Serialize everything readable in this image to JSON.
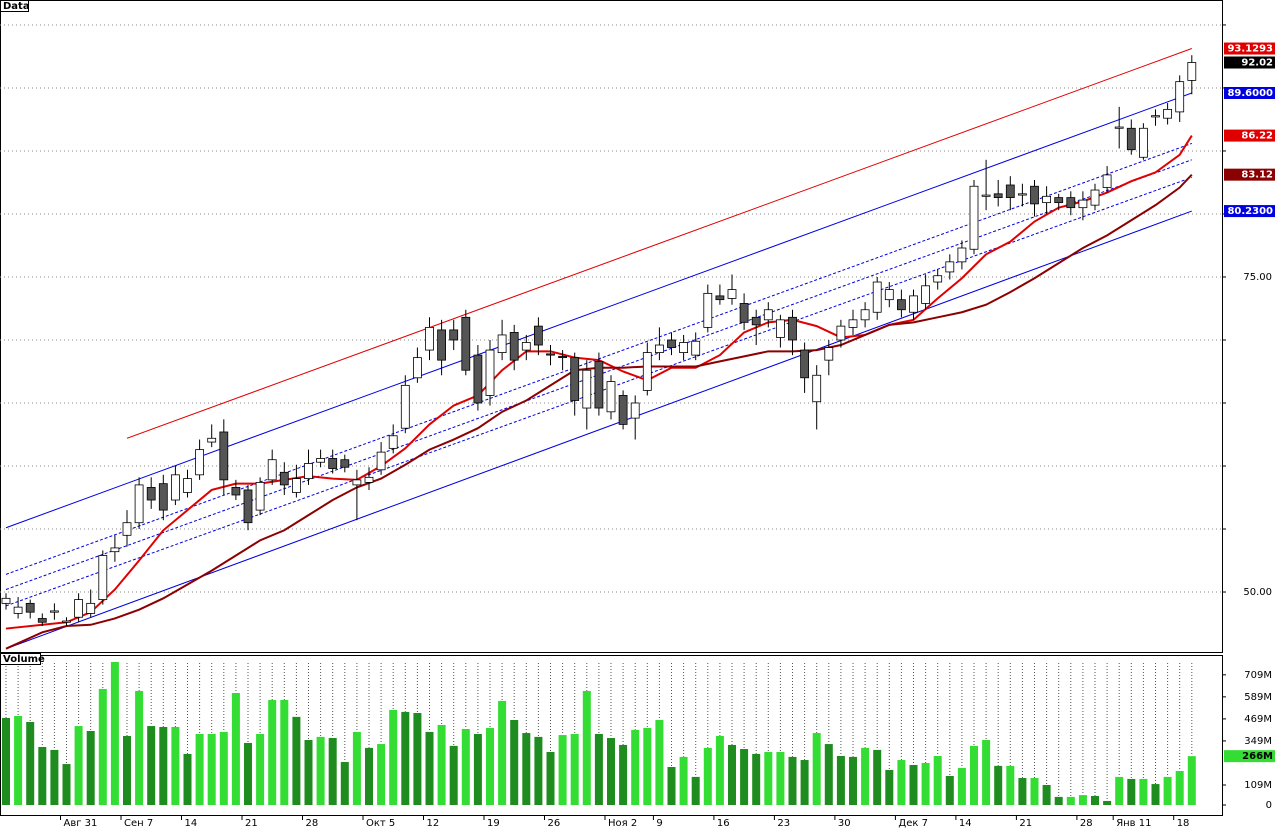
{
  "chart_data": [
    {
      "type": "candlestick",
      "title": "Data",
      "open": [
        49.1,
        48.3,
        49.1,
        47.9,
        48.4,
        47.6,
        48.0,
        48.3,
        49.4,
        53.2,
        54.5,
        55.5,
        58.3,
        58.6,
        57.3,
        57.9,
        59.3,
        61.9,
        62.7,
        58.3,
        58.1,
        56.5,
        58.9,
        59.5,
        57.9,
        59.0,
        60.3,
        60.6,
        60.5,
        58.5,
        58.7,
        59.7,
        61.4,
        63.0,
        67.0,
        69.2,
        70.8,
        70.8,
        71.8,
        68.8,
        65.6,
        69.0,
        70.6,
        69.2,
        71.1,
        68.9,
        68.7,
        68.6,
        64.6,
        68.3,
        64.3,
        65.6,
        63.8,
        66.0,
        69.0,
        70.0,
        69.0,
        68.8,
        71.0,
        73.5,
        73.3,
        72.9,
        71.8,
        71.6,
        70.2,
        71.8,
        69.2,
        65.1,
        68.4,
        70.0,
        71.0,
        71.6,
        72.2,
        73.2,
        73.2,
        72.2,
        72.9,
        74.6,
        75.4,
        76.2,
        77.2,
        81.4,
        81.6,
        82.3,
        81.5,
        82.2,
        80.9,
        81.3,
        81.3,
        80.5,
        80.7,
        82.1,
        86.8,
        86.8,
        84.5,
        87.7,
        87.6,
        88.1,
        90.6
      ],
      "high": [
        49.9,
        49.6,
        49.4,
        48.3,
        49.1,
        48.0,
        49.9,
        50.2,
        53.3,
        54.5,
        56.5,
        59.1,
        59.1,
        59.3,
        60.0,
        59.7,
        62.1,
        63.3,
        63.7,
        58.9,
        58.5,
        59.1,
        61.3,
        60.3,
        60.1,
        61.3,
        61.3,
        61.3,
        60.9,
        59.7,
        59.9,
        61.9,
        63.3,
        67.2,
        69.4,
        71.8,
        71.6,
        71.6,
        72.4,
        69.6,
        70.0,
        71.6,
        71.2,
        70.4,
        71.8,
        69.6,
        69.2,
        69.0,
        68.4,
        69.0,
        67.2,
        66.0,
        65.6,
        69.8,
        71.0,
        70.6,
        70.4,
        70.6,
        74.4,
        74.4,
        75.2,
        73.7,
        72.4,
        73.0,
        72.0,
        72.4,
        69.8,
        68.0,
        70.0,
        71.6,
        72.4,
        73.0,
        75.0,
        74.6,
        74.0,
        74.0,
        75.2,
        75.6,
        76.8,
        77.9,
        82.7,
        84.3,
        82.7,
        83.0,
        82.4,
        82.7,
        82.2,
        81.6,
        81.8,
        81.8,
        82.4,
        83.8,
        88.5,
        87.5,
        87.2,
        88.3,
        88.8,
        91.0,
        92.6
      ],
      "low": [
        48.6,
        47.9,
        47.9,
        47.3,
        47.8,
        47.3,
        47.6,
        48.0,
        49.0,
        52.4,
        53.6,
        55.0,
        56.6,
        55.7,
        56.9,
        57.5,
        58.9,
        61.5,
        57.7,
        57.3,
        54.9,
        56.1,
        58.5,
        57.7,
        57.5,
        58.5,
        59.9,
        59.4,
        59.5,
        55.7,
        58.1,
        59.3,
        61.0,
        62.6,
        66.6,
        68.4,
        67.2,
        69.2,
        67.2,
        64.4,
        64.8,
        68.4,
        67.6,
        68.4,
        68.8,
        68.0,
        67.6,
        64.0,
        62.9,
        64.0,
        63.7,
        62.9,
        62.1,
        65.6,
        68.4,
        68.8,
        68.4,
        68.4,
        70.6,
        72.8,
        72.8,
        70.8,
        69.6,
        71.0,
        69.4,
        68.8,
        65.8,
        62.9,
        67.2,
        69.4,
        70.4,
        71.0,
        71.6,
        72.6,
        71.8,
        71.6,
        72.4,
        74.0,
        74.8,
        75.6,
        76.8,
        80.3,
        80.6,
        80.3,
        80.6,
        79.8,
        80.0,
        80.3,
        79.9,
        79.5,
        80.3,
        81.7,
        85.2,
        84.7,
        84.3,
        87.0,
        87.1,
        87.3,
        89.5
      ],
      "close": [
        49.5,
        48.8,
        48.4,
        47.6,
        48.5,
        47.7,
        49.4,
        49.1,
        52.9,
        53.5,
        55.5,
        58.5,
        57.3,
        56.5,
        59.3,
        59.0,
        61.3,
        62.2,
        58.9,
        57.7,
        55.5,
        58.7,
        60.5,
        58.5,
        59.0,
        60.2,
        60.6,
        59.8,
        59.9,
        58.9,
        59.1,
        61.1,
        62.4,
        66.4,
        68.6,
        71.0,
        68.4,
        70.0,
        67.6,
        65.0,
        69.2,
        70.4,
        68.4,
        69.8,
        69.6,
        68.8,
        68.6,
        65.2,
        67.6,
        64.6,
        66.7,
        63.3,
        65.0,
        69.0,
        69.6,
        69.4,
        69.8,
        69.9,
        73.7,
        73.2,
        74.0,
        71.4,
        71.2,
        72.4,
        71.6,
        70.0,
        67.0,
        67.2,
        69.4,
        71.1,
        71.6,
        72.4,
        74.6,
        74.0,
        72.4,
        73.5,
        74.3,
        75.1,
        76.2,
        77.3,
        82.2,
        81.5,
        81.3,
        81.3,
        81.6,
        80.8,
        81.4,
        80.9,
        80.5,
        81.1,
        81.9,
        83.1,
        86.9,
        85.1,
        86.8,
        87.8,
        88.3,
        90.5,
        92.02
      ],
      "candle_colors": {
        "up": "#ffffff",
        "down": "#555555"
      },
      "last_label_box": "#000000",
      "ylim": [
        45.24,
        96.98
      ],
      "yticks": [
        {
          "value": 50,
          "label": "50.00"
        },
        {
          "value": 75,
          "label": "75.00"
        }
      ],
      "ygrid": [
        50,
        55,
        60,
        65,
        70,
        75,
        80,
        85,
        90,
        95
      ],
      "series": [
        {
          "color": "#e00000",
          "label_box": "#e00000",
          "x": [
            0,
            5,
            7,
            9,
            11,
            13,
            15,
            17,
            19,
            21,
            23,
            25,
            27,
            29,
            31,
            33,
            35,
            37,
            39,
            41,
            43,
            45,
            47,
            49,
            51,
            53,
            55,
            57,
            59,
            61,
            63,
            65,
            67,
            69,
            71,
            73,
            75,
            77,
            79,
            81,
            83,
            85,
            87,
            89,
            91,
            93,
            95,
            97,
            98
          ],
          "values": [
            47.1,
            47.6,
            48.4,
            50.2,
            52.5,
            54.9,
            56.5,
            58.1,
            58.6,
            58.6,
            58.9,
            59.2,
            59.0,
            58.9,
            60.0,
            61.4,
            63.3,
            64.8,
            65.6,
            67.6,
            69.1,
            69.1,
            68.6,
            68.4,
            67.5,
            66.8,
            67.8,
            67.8,
            68.8,
            70.6,
            71.4,
            71.6,
            71.1,
            70.2,
            70.4,
            71.2,
            71.6,
            73.3,
            74.9,
            76.8,
            77.8,
            79.4,
            80.5,
            81.0,
            81.7,
            82.6,
            83.3,
            84.7,
            86.22
          ]
        },
        {
          "color": "#8b0000",
          "label_box": "#8b0000",
          "x": [
            0,
            3,
            5,
            7,
            9,
            11,
            13,
            15,
            17,
            19,
            21,
            23,
            25,
            27,
            29,
            31,
            33,
            35,
            37,
            39,
            41,
            43,
            45,
            47,
            49,
            51,
            53,
            55,
            57,
            59,
            61,
            63,
            65,
            67,
            69,
            71,
            73,
            75,
            77,
            79,
            81,
            83,
            85,
            87,
            89,
            91,
            93,
            95,
            97,
            98
          ],
          "values": [
            45.5,
            46.8,
            47.3,
            47.4,
            47.9,
            48.6,
            49.5,
            50.6,
            51.7,
            52.9,
            54.1,
            54.9,
            56.1,
            57.3,
            58.3,
            59.0,
            60.1,
            61.3,
            62.1,
            63.0,
            64.3,
            65.2,
            66.4,
            67.6,
            67.8,
            67.8,
            67.9,
            67.9,
            67.9,
            68.3,
            68.7,
            69.1,
            69.1,
            69.2,
            69.6,
            70.4,
            71.2,
            71.4,
            71.8,
            72.2,
            72.8,
            73.8,
            74.9,
            76.1,
            77.3,
            78.3,
            79.5,
            80.7,
            82.1,
            83.12
          ]
        }
      ],
      "lines": [
        {
          "color": "#e00000",
          "dashed": false,
          "label_box": "#e00000",
          "x": [
            10,
            98
          ],
          "values": [
            62.2,
            93.1293
          ]
        },
        {
          "color": "#0000e0",
          "dashed": false,
          "label_box": "#0000e0",
          "x": [
            0,
            98
          ],
          "values": [
            55.1,
            89.6
          ],
          "value_labels": [
            null,
            "89.6000"
          ]
        },
        {
          "color": "#0000e0",
          "dashed": false,
          "label_box": "#0000e0",
          "x": [
            0,
            98
          ],
          "values": [
            45.5,
            80.23
          ],
          "value_labels": [
            null,
            "80.2300"
          ]
        },
        {
          "color": "#0000e0",
          "dashed": true,
          "x": [
            0,
            98
          ],
          "values": [
            51.4,
            85.6
          ]
        },
        {
          "color": "#0000e0",
          "dashed": true,
          "x": [
            0,
            98
          ],
          "values": [
            50.2,
            84.3
          ]
        },
        {
          "color": "#0000e0",
          "dashed": true,
          "x": [
            0,
            98
          ],
          "values": [
            48.9,
            82.9
          ]
        }
      ]
    },
    {
      "type": "bar",
      "title": "Volume",
      "categories": [
        null,
        null,
        null,
        null,
        null,
        "Авг 31",
        null,
        null,
        null,
        null,
        "Сен 7",
        null,
        null,
        null,
        null,
        "14",
        null,
        null,
        null,
        null,
        "21",
        null,
        null,
        null,
        null,
        "28",
        null,
        null,
        null,
        null,
        "Окт 5",
        null,
        null,
        null,
        null,
        "12",
        null,
        null,
        null,
        null,
        "19",
        null,
        null,
        null,
        null,
        "26",
        null,
        null,
        null,
        null,
        "Ноя 2",
        null,
        null,
        null,
        "9",
        null,
        null,
        null,
        null,
        "16",
        null,
        null,
        null,
        null,
        "23",
        null,
        null,
        null,
        null,
        "30",
        null,
        null,
        null,
        null,
        "Дек 7",
        null,
        null,
        null,
        null,
        "14",
        null,
        null,
        null,
        null,
        "21",
        null,
        null,
        null,
        null,
        "28",
        null,
        null,
        "Янв 11",
        null,
        null,
        null,
        null,
        "18",
        null
      ],
      "values": [
        474,
        485,
        452,
        316,
        300,
        223,
        430,
        403,
        632,
        779,
        376,
        621,
        430,
        425,
        425,
        278,
        387,
        387,
        398,
        610,
        338,
        387,
        572,
        572,
        480,
        354,
        371,
        365,
        234,
        398,
        311,
        332,
        518,
        507,
        501,
        398,
        436,
        322,
        414,
        387,
        420,
        567,
        463,
        392,
        371,
        289,
        381,
        387,
        621,
        387,
        365,
        327,
        409,
        420,
        463,
        207,
        262,
        153,
        311,
        376,
        327,
        305,
        278,
        289,
        289,
        262,
        245,
        392,
        332,
        267,
        262,
        311,
        300,
        191,
        245,
        218,
        229,
        267,
        158,
        202,
        322,
        354,
        213,
        213,
        147,
        147,
        109,
        44,
        44,
        54,
        49,
        22,
        153,
        142,
        142,
        114,
        153,
        185,
        266
      ],
      "value_labels": [
        null,
        null,
        null,
        null,
        null,
        null,
        null,
        null,
        null,
        null,
        null,
        null,
        null,
        null,
        null,
        null,
        null,
        null,
        null,
        null,
        null,
        null,
        null,
        null,
        null,
        null,
        null,
        null,
        null,
        null,
        null,
        null,
        null,
        null,
        null,
        null,
        null,
        null,
        null,
        null,
        null,
        null,
        null,
        null,
        null,
        null,
        null,
        null,
        null,
        null,
        null,
        null,
        null,
        null,
        null,
        null,
        null,
        null,
        null,
        null,
        null,
        null,
        null,
        null,
        null,
        null,
        null,
        null,
        null,
        null,
        null,
        null,
        null,
        null,
        null,
        null,
        null,
        null,
        null,
        null,
        null,
        null,
        null,
        null,
        null,
        null,
        null,
        null,
        null,
        null,
        null,
        null,
        null,
        null,
        null,
        null,
        null,
        null,
        "266M"
      ],
      "colors": {
        "up": "#33dd33",
        "down": "#1e8c1e"
      },
      "label_box": "#33dd33",
      "ylim": [
        0,
        817
      ],
      "yticks": [
        0,
        {
          "value": 109,
          "label": "109M"
        },
        {
          "value": 349,
          "label": "349M"
        },
        {
          "value": 469,
          "label": "469M"
        },
        {
          "value": 589,
          "label": "589M"
        },
        {
          "value": 709,
          "label": "709M"
        }
      ]
    }
  ]
}
